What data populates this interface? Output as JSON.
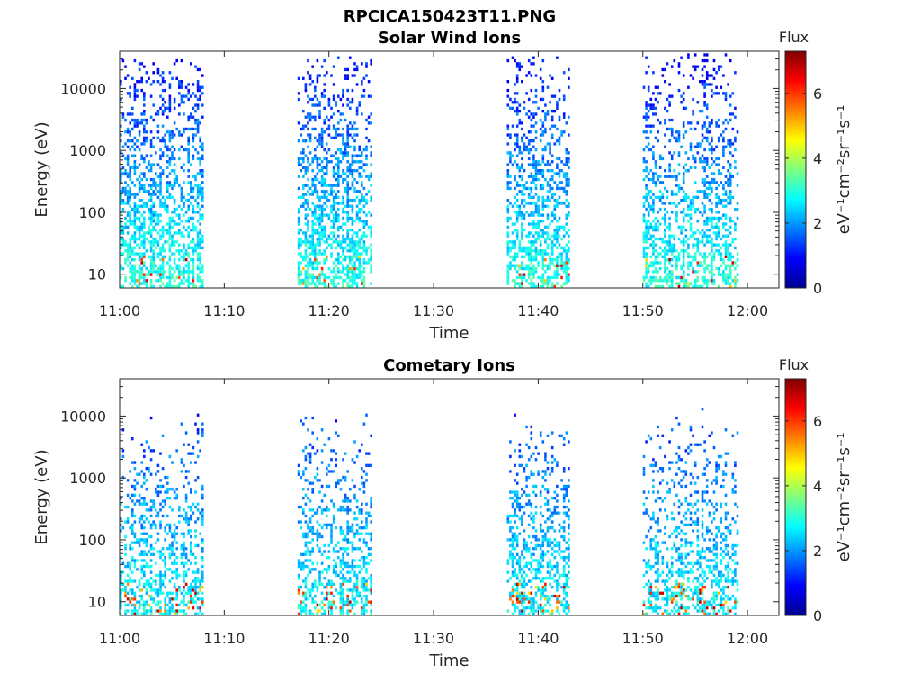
{
  "figure_title": "RPCICA150423T11.PNG",
  "chart_data": [
    {
      "type": "heatmap",
      "title": "Solar Wind Ions",
      "xlabel": "Time",
      "ylabel": "Energy (eV)",
      "x_ticks": [
        "11:00",
        "11:10",
        "11:20",
        "11:30",
        "11:40",
        "11:50",
        "12:00"
      ],
      "xlim": [
        "11:00",
        "12:03"
      ],
      "y_scale": "log",
      "y_ticks": [
        10,
        100,
        1000,
        10000
      ],
      "ylim": [
        6,
        40000
      ],
      "colorbar": {
        "label": "Flux",
        "units": "eV⁻¹cm⁻²sr⁻¹s⁻¹",
        "range": [
          0,
          7.3
        ],
        "ticks": [
          0,
          2,
          4,
          6
        ]
      },
      "activity_intervals": [
        {
          "start": "11:00",
          "end": "11:08",
          "e_max": 30000
        },
        {
          "start": "11:17",
          "end": "11:24",
          "e_max": 35000
        },
        {
          "start": "11:37",
          "end": "11:43",
          "e_max": 35000
        },
        {
          "start": "11:50",
          "end": "11:59",
          "e_max": 38000
        }
      ]
    },
    {
      "type": "heatmap",
      "title": "Cometary Ions",
      "xlabel": "Time",
      "ylabel": "Energy (eV)",
      "x_ticks": [
        "11:00",
        "11:10",
        "11:20",
        "11:30",
        "11:40",
        "11:50",
        "12:00"
      ],
      "xlim": [
        "11:00",
        "12:03"
      ],
      "y_scale": "log",
      "y_ticks": [
        10,
        100,
        1000,
        10000
      ],
      "ylim": [
        6,
        40000
      ],
      "colorbar": {
        "label": "Flux",
        "units": "eV⁻¹cm⁻²sr⁻¹s⁻¹",
        "range": [
          0,
          7.3
        ],
        "ticks": [
          0,
          2,
          4,
          6
        ]
      },
      "activity_intervals": [
        {
          "start": "11:00",
          "end": "11:08",
          "e_max": 25000
        },
        {
          "start": "11:17",
          "end": "11:24",
          "e_max": 24000
        },
        {
          "start": "11:37",
          "end": "11:43",
          "e_max": 11000
        },
        {
          "start": "11:50",
          "end": "11:59",
          "e_max": 30000
        }
      ]
    }
  ]
}
